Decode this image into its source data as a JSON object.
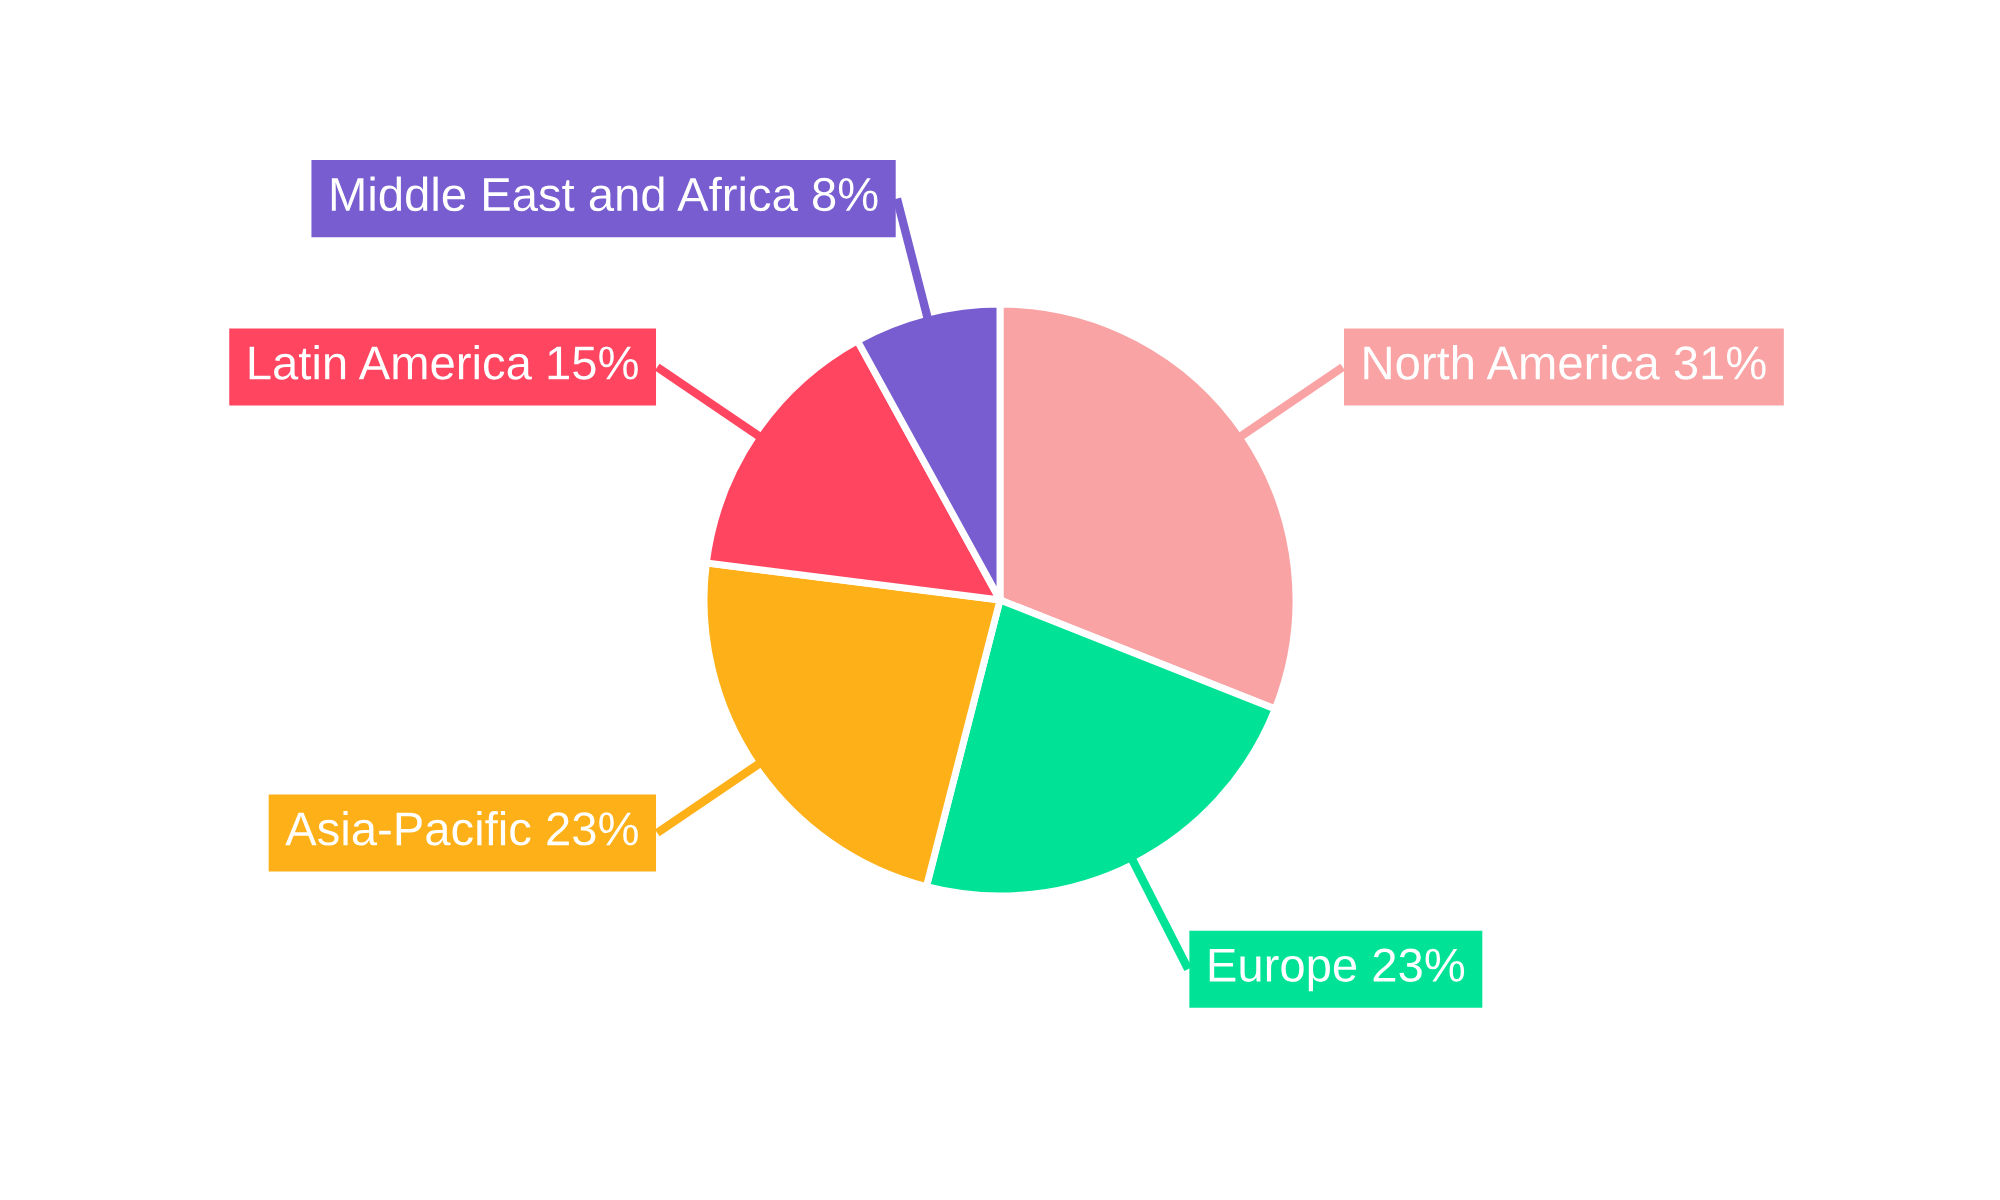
{
  "chart_data": {
    "type": "pie",
    "categories": [
      "North America",
      "Europe",
      "Asia-Pacific",
      "Latin America",
      "Middle East and Africa"
    ],
    "values": [
      31,
      23,
      23,
      15,
      8
    ],
    "value_labels": [
      "31%",
      "23%",
      "23%",
      "15%",
      "8%"
    ],
    "colors": [
      "#f9a3a4",
      "#00e396",
      "#feb019",
      "#ff4560",
      "#775dd0"
    ],
    "legend": false
  }
}
